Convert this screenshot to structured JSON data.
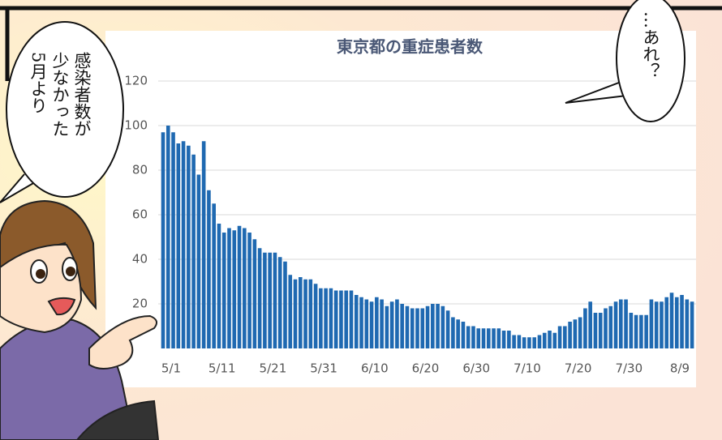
{
  "chart_data": {
    "type": "bar",
    "title": "東京都の重症患者数",
    "categories": [
      "5/1",
      null,
      null,
      null,
      null,
      null,
      null,
      null,
      null,
      null,
      "5/11",
      null,
      null,
      null,
      null,
      null,
      null,
      null,
      null,
      null,
      "5/21",
      null,
      null,
      null,
      null,
      null,
      null,
      null,
      null,
      null,
      "5/31",
      null,
      null,
      null,
      null,
      null,
      null,
      null,
      null,
      null,
      "6/10",
      null,
      null,
      null,
      null,
      null,
      null,
      null,
      null,
      null,
      "6/20",
      null,
      null,
      null,
      null,
      null,
      null,
      null,
      null,
      null,
      "6/30",
      null,
      null,
      null,
      null,
      null,
      null,
      null,
      null,
      null,
      "7/10",
      null,
      null,
      null,
      null,
      null,
      null,
      null,
      null,
      null,
      "7/20",
      null,
      null,
      null,
      null,
      null,
      null,
      null,
      null,
      null,
      "7/30",
      null,
      null,
      null,
      null,
      null,
      null,
      null,
      null,
      null,
      "8/9",
      null,
      null,
      null,
      null
    ],
    "values": [
      97,
      100,
      97,
      92,
      93,
      91,
      87,
      78,
      93,
      71,
      65,
      56,
      52,
      54,
      53,
      55,
      54,
      52,
      49,
      45,
      43,
      43,
      43,
      41,
      39,
      33,
      31,
      32,
      31,
      31,
      29,
      27,
      27,
      27,
      26,
      26,
      26,
      26,
      24,
      23,
      22,
      21,
      23,
      22,
      19,
      21,
      22,
      20,
      19,
      18,
      18,
      18,
      19,
      20,
      20,
      19,
      17,
      14,
      13,
      12,
      10,
      10,
      9,
      9,
      9,
      9,
      9,
      8,
      8,
      6,
      6,
      5,
      5,
      5,
      6,
      7,
      8,
      7,
      10,
      10,
      12,
      13,
      14,
      18,
      21,
      16,
      16,
      18,
      19,
      21,
      22,
      22,
      16,
      15,
      15,
      15,
      22,
      21,
      21,
      23,
      25,
      23,
      24,
      22,
      21
    ],
    "color": "#1f69b1",
    "ylim": [
      0,
      120
    ],
    "yticks": [
      20,
      40,
      60,
      80,
      100,
      120
    ],
    "grid": true
  },
  "speech": {
    "left": [
      "感染者数が",
      "少なかった",
      "5月より"
    ],
    "right": "…あれ？"
  }
}
